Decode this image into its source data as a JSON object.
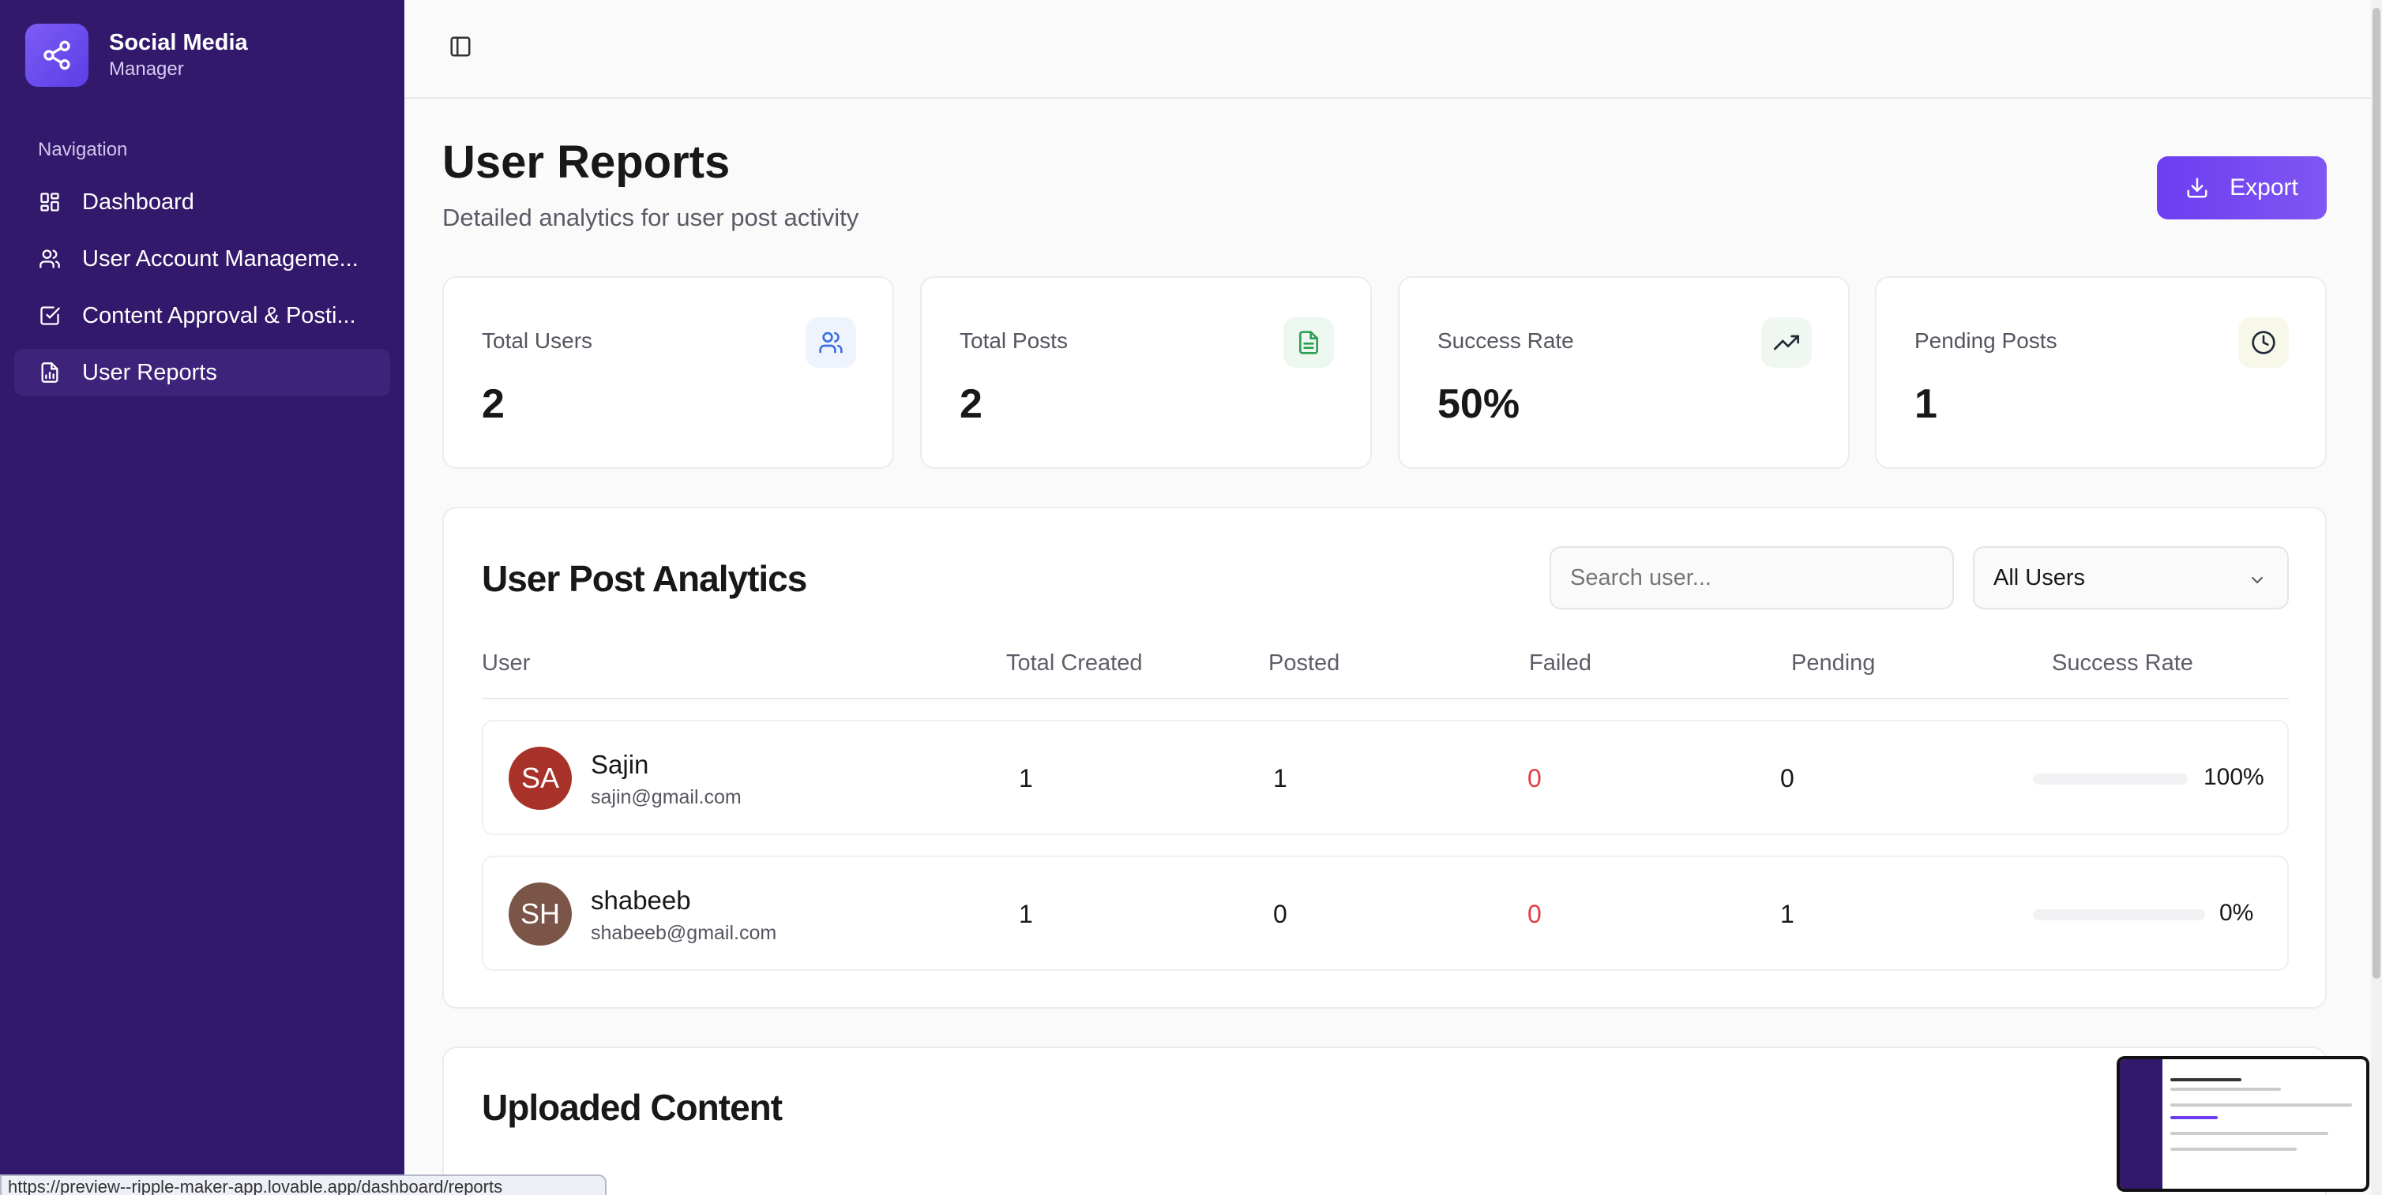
{
  "brand": {
    "title": "Social Media",
    "subtitle": "Manager"
  },
  "nav": {
    "heading": "Navigation",
    "items": [
      {
        "label": "Dashboard",
        "icon": "layout-grid-icon"
      },
      {
        "label": "User Account Manageme...",
        "icon": "users-icon"
      },
      {
        "label": "Content Approval & Posti...",
        "icon": "check-square-icon"
      },
      {
        "label": "User Reports",
        "icon": "file-chart-icon",
        "active": true
      }
    ]
  },
  "page": {
    "title": "User Reports",
    "subtitle": "Detailed analytics for user post activity",
    "export_label": "Export"
  },
  "stats": [
    {
      "label": "Total Users",
      "value": "2",
      "icon": "users-icon",
      "color": "#3b6fe0"
    },
    {
      "label": "Total Posts",
      "value": "2",
      "icon": "file-text-icon",
      "color": "#2f9e55"
    },
    {
      "label": "Success Rate",
      "value": "50%",
      "icon": "trending-up-icon",
      "color": "#1f2937"
    },
    {
      "label": "Pending Posts",
      "value": "1",
      "icon": "clock-icon",
      "color": "#1f2937"
    }
  ],
  "analytics": {
    "title": "User Post Analytics",
    "search_placeholder": "Search user...",
    "filter_value": "All Users",
    "columns": [
      "User",
      "Total Created",
      "Posted",
      "Failed",
      "Pending",
      "Success Rate"
    ],
    "rows": [
      {
        "initials": "SA",
        "name": "Sajin",
        "email": "sajin@gmail.com",
        "total": "1",
        "posted": "1",
        "failed": "0",
        "pending": "0",
        "rate": "100%",
        "rate_fraction": 1.0,
        "avatar_color": "#a8322a"
      },
      {
        "initials": "SH",
        "name": "shabeeb",
        "email": "shabeeb@gmail.com",
        "total": "1",
        "posted": "0",
        "failed": "0",
        "pending": "1",
        "rate": "0%",
        "rate_fraction": 0.0,
        "avatar_color": "#7a5548"
      }
    ]
  },
  "uploaded": {
    "title": "Uploaded Content"
  },
  "status_url": "https://preview--ripple-maker-app.lovable.app/dashboard/reports"
}
